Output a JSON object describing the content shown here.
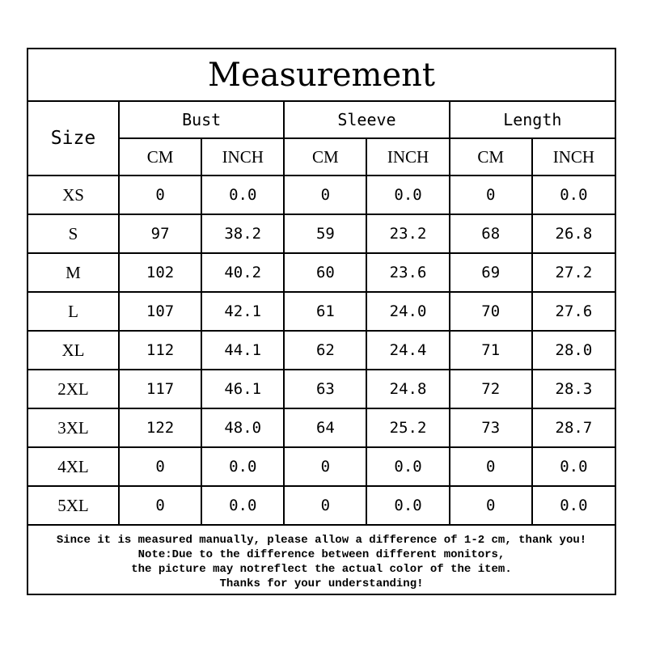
{
  "title": "Measurement",
  "headers": {
    "size": "Size",
    "groups": [
      "Bust",
      "Sleeve",
      "Length"
    ],
    "units": [
      "CM",
      "INCH"
    ]
  },
  "rows": [
    {
      "size": "XS",
      "values": [
        "0",
        "0.0",
        "0",
        "0.0",
        "0",
        "0.0"
      ]
    },
    {
      "size": "S",
      "values": [
        "97",
        "38.2",
        "59",
        "23.2",
        "68",
        "26.8"
      ]
    },
    {
      "size": "M",
      "values": [
        "102",
        "40.2",
        "60",
        "23.6",
        "69",
        "27.2"
      ]
    },
    {
      "size": "L",
      "values": [
        "107",
        "42.1",
        "61",
        "24.0",
        "70",
        "27.6"
      ]
    },
    {
      "size": "XL",
      "values": [
        "112",
        "44.1",
        "62",
        "24.4",
        "71",
        "28.0"
      ]
    },
    {
      "size": "2XL",
      "values": [
        "117",
        "46.1",
        "63",
        "24.8",
        "72",
        "28.3"
      ]
    },
    {
      "size": "3XL",
      "values": [
        "122",
        "48.0",
        "64",
        "25.2",
        "73",
        "28.7"
      ]
    },
    {
      "size": "4XL",
      "values": [
        "0",
        "0.0",
        "0",
        "0.0",
        "0",
        "0.0"
      ]
    },
    {
      "size": "5XL",
      "values": [
        "0",
        "0.0",
        "0",
        "0.0",
        "0",
        "0.0"
      ]
    }
  ],
  "footer": [
    "Since it is measured manually, please allow a difference of 1-2 cm, thank you!",
    "Note:Due to the difference between different monitors,",
    "the picture may notreflect the actual color of the item.",
    "Thanks for your understanding!"
  ]
}
